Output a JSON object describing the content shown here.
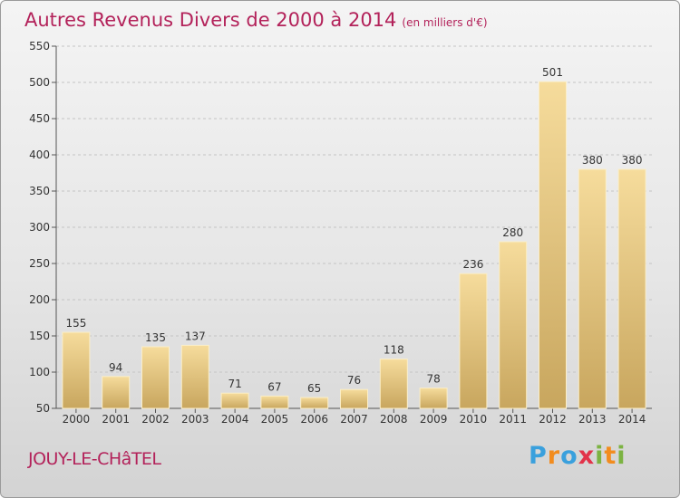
{
  "chart_data": {
    "type": "bar",
    "title": "Autres Revenus Divers de 2000 à 2014",
    "unit_note": "(en milliers d'€)",
    "categories": [
      "2000",
      "2001",
      "2002",
      "2003",
      "2004",
      "2005",
      "2006",
      "2007",
      "2008",
      "2009",
      "2010",
      "2011",
      "2012",
      "2013",
      "2014"
    ],
    "values": [
      155,
      94,
      135,
      137,
      71,
      67,
      65,
      76,
      118,
      78,
      236,
      280,
      501,
      380,
      380
    ],
    "ylim": [
      50,
      550
    ],
    "yticks": [
      50,
      100,
      150,
      200,
      250,
      300,
      350,
      400,
      450,
      500,
      550
    ],
    "grid": "horizontal",
    "bar_color": "#e3c37c"
  },
  "footer": {
    "location": "JOUY-LE-CHâTEL",
    "brand_letters": [
      "P",
      "r",
      "o",
      "x",
      "i",
      "t",
      "i"
    ],
    "brand_colors": [
      "#3aa0dd",
      "#f28c1e",
      "#3aa0dd",
      "#e2334a",
      "#7cb342",
      "#f28c1e",
      "#7cb342"
    ]
  }
}
